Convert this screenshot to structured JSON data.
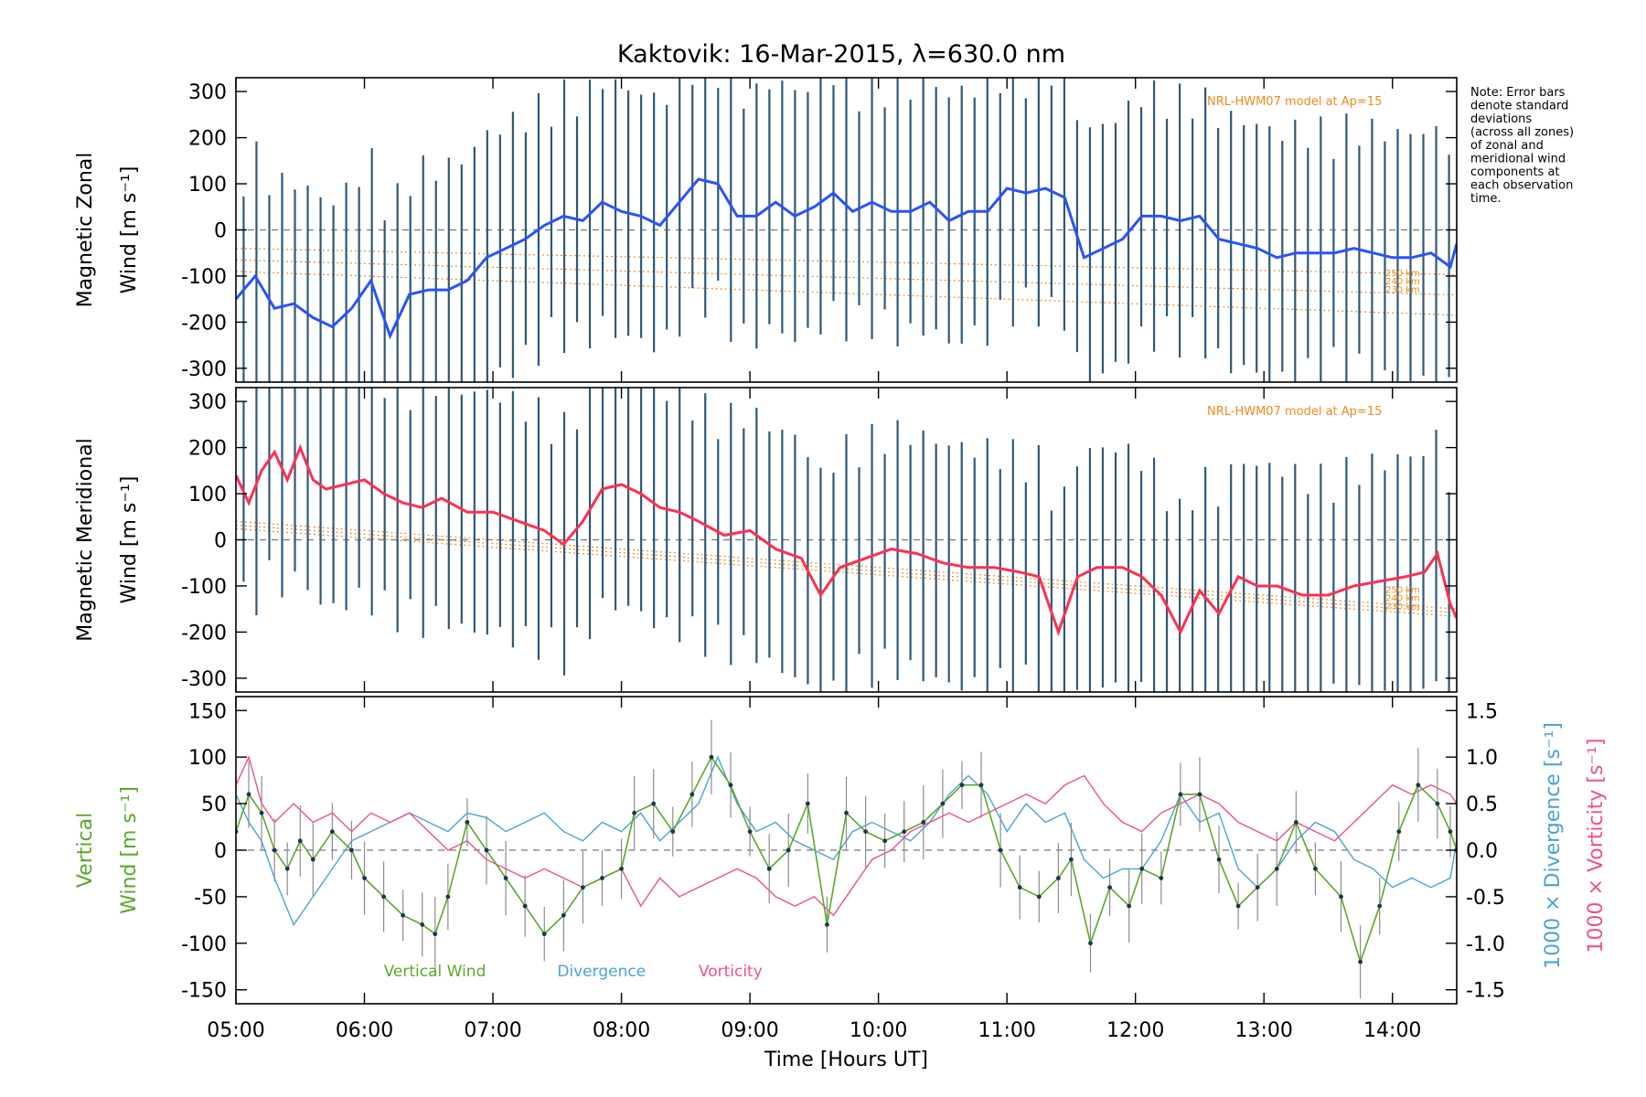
{
  "figure": {
    "title": "Kaktovik: 16-Mar-2015, λ=630.0 nm",
    "note_lines": [
      "Note: Error bars",
      "denote standard",
      "deviations",
      "(across all zones)",
      "of zonal and",
      "meridional wind",
      "components at",
      "each observation",
      "time."
    ]
  },
  "colors": {
    "zonal": "#2a52ff",
    "meridional": "#ff3050",
    "vertical": "#5aa82a",
    "divergence": "#4aa3d6",
    "vorticity": "#f0508a",
    "errorbar": "#2f5878",
    "model": "#f08a1e"
  },
  "chart_data": [
    {
      "type": "line",
      "panel": "zonal",
      "ylabel_line1": "Magnetic Zonal",
      "ylabel_line2": "Wind [m s⁻¹]",
      "xlim": [
        5.0,
        14.5
      ],
      "ylim": [
        -330,
        330
      ],
      "yticks": [
        300,
        200,
        100,
        0,
        -100,
        -200,
        -300
      ],
      "model_label": "NRL-HWM07 model at Ap=15",
      "model_alt_labels": [
        "250 km",
        "240 km",
        "230 km"
      ],
      "errorbar_half_width": 270,
      "series": [
        {
          "x": [
            5.0,
            5.15,
            5.3,
            5.45,
            5.6,
            5.75,
            5.9,
            6.05,
            6.2,
            6.35,
            6.5,
            6.65,
            6.8,
            6.95,
            7.1,
            7.25,
            7.4,
            7.55,
            7.7,
            7.85,
            8.0,
            8.15,
            8.3,
            8.45,
            8.6,
            8.75,
            8.9,
            9.05,
            9.2,
            9.35,
            9.5,
            9.65,
            9.8,
            9.95,
            10.1,
            10.25,
            10.4,
            10.55,
            10.7,
            10.85,
            11.0,
            11.15,
            11.3,
            11.45,
            11.6,
            11.75,
            11.9,
            12.05,
            12.2,
            12.35,
            12.5,
            12.65,
            12.8,
            12.95,
            13.1,
            13.25,
            13.4,
            13.55,
            13.7,
            13.85,
            14.0,
            14.15,
            14.3,
            14.45,
            14.5
          ],
          "y": [
            -150,
            -100,
            -170,
            -160,
            -190,
            -210,
            -170,
            -110,
            -230,
            -140,
            -130,
            -130,
            -110,
            -60,
            -40,
            -20,
            10,
            30,
            20,
            60,
            40,
            30,
            10,
            60,
            110,
            100,
            30,
            30,
            60,
            30,
            50,
            80,
            40,
            60,
            40,
            40,
            60,
            20,
            40,
            40,
            90,
            80,
            90,
            70,
            -60,
            -40,
            -20,
            30,
            30,
            20,
            30,
            -20,
            -30,
            -40,
            -60,
            -50,
            -50,
            -50,
            -40,
            -50,
            -60,
            -60,
            -50,
            -80,
            -30
          ]
        }
      ]
    },
    {
      "type": "line",
      "panel": "meridional",
      "ylabel_line1": "Magnetic Meridional",
      "ylabel_line2": "Wind [m s⁻¹]",
      "xlim": [
        5.0,
        14.5
      ],
      "ylim": [
        -330,
        330
      ],
      "yticks": [
        300,
        200,
        100,
        0,
        -100,
        -200,
        -300
      ],
      "model_label": "NRL-HWM07 model at Ap=15",
      "model_alt_labels": [
        "250 km",
        "240 km",
        "230 km"
      ],
      "errorbar_half_width": 260,
      "series": [
        {
          "x": [
            5.0,
            5.1,
            5.2,
            5.3,
            5.4,
            5.5,
            5.6,
            5.7,
            5.85,
            6.0,
            6.15,
            6.3,
            6.45,
            6.6,
            6.8,
            7.0,
            7.2,
            7.4,
            7.55,
            7.7,
            7.85,
            8.0,
            8.15,
            8.3,
            8.45,
            8.6,
            8.8,
            9.0,
            9.2,
            9.4,
            9.55,
            9.7,
            9.9,
            10.1,
            10.3,
            10.5,
            10.7,
            10.9,
            11.1,
            11.25,
            11.4,
            11.55,
            11.7,
            11.9,
            12.05,
            12.2,
            12.35,
            12.5,
            12.65,
            12.8,
            12.95,
            13.1,
            13.3,
            13.5,
            13.7,
            13.9,
            14.1,
            14.25,
            14.35,
            14.45,
            14.5
          ],
          "y": [
            140,
            80,
            150,
            190,
            130,
            200,
            130,
            110,
            120,
            130,
            100,
            80,
            70,
            90,
            60,
            60,
            40,
            20,
            -10,
            40,
            110,
            120,
            100,
            70,
            60,
            40,
            10,
            20,
            -20,
            -40,
            -120,
            -60,
            -40,
            -20,
            -30,
            -50,
            -60,
            -60,
            -70,
            -80,
            -200,
            -80,
            -60,
            -60,
            -80,
            -120,
            -200,
            -110,
            -160,
            -80,
            -100,
            -100,
            -120,
            -120,
            -100,
            -90,
            -80,
            -70,
            -30,
            -140,
            -170
          ]
        }
      ]
    },
    {
      "type": "line",
      "panel": "vertical",
      "ylabel_line1": "Vertical",
      "ylabel_line2": "Wind [m s⁻¹]",
      "y2label_line1": "1000 × Divergence [s⁻¹]",
      "y2label_line2": "1000 × Vorticity [s⁻¹]",
      "xlabel": "Time [Hours UT]",
      "xlim": [
        5.0,
        14.5
      ],
      "xticks": [
        "05:00",
        "06:00",
        "07:00",
        "08:00",
        "09:00",
        "10:00",
        "11:00",
        "12:00",
        "13:00",
        "14:00"
      ],
      "ylim": [
        -165,
        165
      ],
      "yticks": [
        150,
        100,
        50,
        0,
        -50,
        -100,
        -150
      ],
      "y2lim": [
        -1.65,
        1.65
      ],
      "y2ticks": [
        "1.5",
        "1.0",
        "0.5",
        "0.0",
        "-0.5",
        "-1.0",
        "-1.5"
      ],
      "legend": [
        {
          "name": "Vertical Wind",
          "key": "vertical",
          "x": 6.15
        },
        {
          "name": "Divergence",
          "key": "divergence",
          "x": 7.5
        },
        {
          "name": "Vorticity",
          "key": "vorticity",
          "x": 8.6
        }
      ],
      "series": [
        {
          "name": "Vertical Wind",
          "key": "vertical",
          "x": [
            5.0,
            5.1,
            5.2,
            5.3,
            5.4,
            5.5,
            5.6,
            5.75,
            5.9,
            6.0,
            6.15,
            6.3,
            6.45,
            6.55,
            6.65,
            6.8,
            6.95,
            7.1,
            7.25,
            7.4,
            7.55,
            7.7,
            7.85,
            8.0,
            8.1,
            8.25,
            8.4,
            8.55,
            8.7,
            8.85,
            9.0,
            9.15,
            9.3,
            9.45,
            9.6,
            9.75,
            9.9,
            10.05,
            10.2,
            10.35,
            10.5,
            10.65,
            10.8,
            10.95,
            11.1,
            11.25,
            11.4,
            11.5,
            11.65,
            11.8,
            11.95,
            12.05,
            12.2,
            12.35,
            12.5,
            12.65,
            12.8,
            12.95,
            13.1,
            13.25,
            13.4,
            13.6,
            13.75,
            13.9,
            14.05,
            14.2,
            14.35,
            14.45,
            14.5
          ],
          "y": [
            20,
            60,
            40,
            0,
            -20,
            10,
            -10,
            20,
            0,
            -30,
            -50,
            -70,
            -80,
            -90,
            -50,
            30,
            0,
            -30,
            -60,
            -90,
            -70,
            -40,
            -30,
            -20,
            40,
            50,
            20,
            60,
            100,
            70,
            20,
            -20,
            0,
            50,
            -80,
            40,
            20,
            10,
            20,
            30,
            50,
            70,
            70,
            0,
            -40,
            -50,
            -30,
            -10,
            -100,
            -40,
            -60,
            -20,
            -30,
            60,
            60,
            -10,
            -60,
            -40,
            -20,
            30,
            -20,
            -50,
            -120,
            -60,
            20,
            70,
            50,
            20,
            0
          ]
        },
        {
          "name": "Divergence",
          "key": "divergence",
          "scale": "y2",
          "x": [
            5.0,
            5.1,
            5.2,
            5.3,
            5.45,
            5.6,
            5.75,
            5.9,
            6.05,
            6.2,
            6.35,
            6.5,
            6.65,
            6.8,
            6.95,
            7.1,
            7.25,
            7.4,
            7.55,
            7.7,
            7.85,
            8.0,
            8.15,
            8.3,
            8.45,
            8.6,
            8.75,
            8.9,
            9.05,
            9.2,
            9.35,
            9.5,
            9.65,
            9.8,
            9.95,
            10.1,
            10.25,
            10.4,
            10.55,
            10.7,
            10.85,
            11.0,
            11.15,
            11.3,
            11.45,
            11.6,
            11.75,
            11.9,
            12.05,
            12.2,
            12.35,
            12.5,
            12.65,
            12.8,
            12.95,
            13.1,
            13.25,
            13.4,
            13.55,
            13.7,
            13.85,
            14.0,
            14.15,
            14.3,
            14.45,
            14.5
          ],
          "y": [
            0.6,
            0.3,
            0.1,
            -0.3,
            -0.8,
            -0.5,
            -0.2,
            0.1,
            0.2,
            0.3,
            0.4,
            0.3,
            0.2,
            0.4,
            0.35,
            0.2,
            0.3,
            0.4,
            0.2,
            0.1,
            0.3,
            0.2,
            0.4,
            0.1,
            0.3,
            0.5,
            1.0,
            0.5,
            0.2,
            0.3,
            0.1,
            0.0,
            -0.1,
            0.2,
            0.3,
            0.2,
            0.1,
            0.3,
            0.6,
            0.8,
            0.6,
            0.2,
            0.5,
            0.3,
            0.4,
            -0.1,
            -0.3,
            -0.2,
            -0.2,
            0.1,
            0.6,
            0.3,
            0.4,
            -0.2,
            -0.4,
            -0.2,
            0.1,
            0.3,
            0.2,
            -0.1,
            -0.2,
            -0.4,
            -0.3,
            -0.4,
            -0.3,
            0.1
          ]
        },
        {
          "name": "Vorticity",
          "key": "vorticity",
          "scale": "y2",
          "x": [
            5.0,
            5.1,
            5.2,
            5.3,
            5.45,
            5.6,
            5.75,
            5.9,
            6.05,
            6.2,
            6.35,
            6.5,
            6.65,
            6.8,
            6.95,
            7.1,
            7.25,
            7.4,
            7.55,
            7.7,
            7.85,
            8.0,
            8.15,
            8.3,
            8.45,
            8.6,
            8.75,
            8.9,
            9.05,
            9.2,
            9.35,
            9.5,
            9.65,
            9.8,
            9.95,
            10.1,
            10.25,
            10.4,
            10.55,
            10.7,
            10.85,
            11.0,
            11.15,
            11.3,
            11.45,
            11.6,
            11.75,
            11.9,
            12.05,
            12.2,
            12.35,
            12.5,
            12.65,
            12.8,
            12.95,
            13.1,
            13.25,
            13.4,
            13.55,
            13.7,
            13.85,
            14.0,
            14.15,
            14.3,
            14.45,
            14.5
          ],
          "y": [
            0.7,
            1.0,
            0.5,
            0.3,
            0.5,
            0.3,
            0.4,
            0.2,
            0.4,
            0.3,
            0.4,
            0.2,
            0.0,
            0.1,
            -0.1,
            -0.2,
            -0.3,
            -0.2,
            -0.3,
            -0.4,
            -0.3,
            -0.2,
            -0.6,
            -0.3,
            -0.5,
            -0.4,
            -0.3,
            -0.2,
            -0.3,
            -0.5,
            -0.6,
            -0.5,
            -0.7,
            -0.4,
            -0.1,
            0.0,
            0.2,
            0.3,
            0.4,
            0.3,
            0.4,
            0.5,
            0.6,
            0.5,
            0.7,
            0.8,
            0.5,
            0.3,
            0.2,
            0.4,
            0.5,
            0.6,
            0.5,
            0.3,
            0.2,
            0.1,
            0.3,
            0.2,
            0.1,
            0.3,
            0.5,
            0.7,
            0.6,
            0.7,
            0.6,
            0.5
          ]
        }
      ]
    }
  ]
}
